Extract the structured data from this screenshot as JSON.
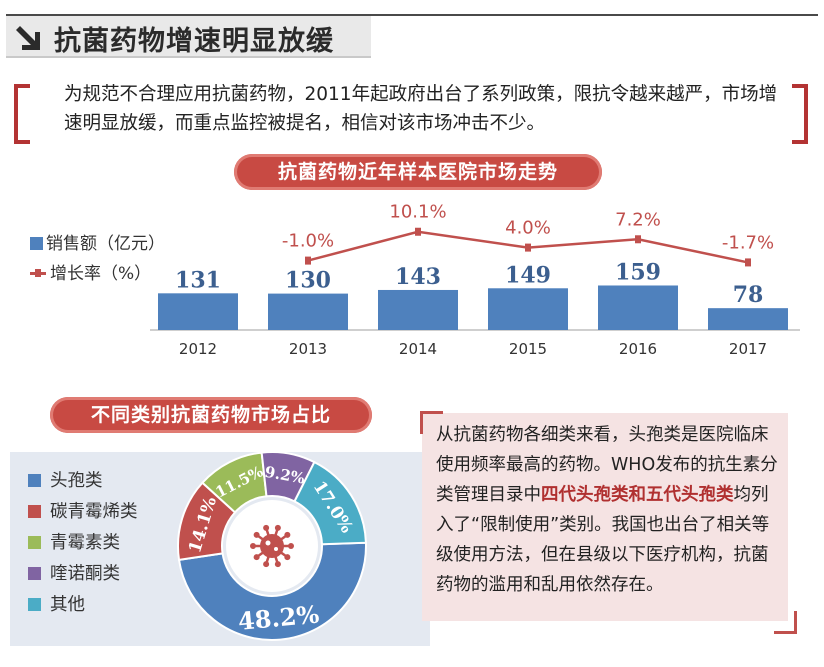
{
  "header": {
    "title": "抗菌药物增速明显放缓"
  },
  "intro": {
    "text": "为规范不合理应用抗菌药物，2011年起政府出台了系列政策，限抗令越来越严，市场增速明显放缓，而重点监控被提名，相信对该市场冲击不少。"
  },
  "chart1_title": "抗菌药物近年样本医院市场走势",
  "chart2_title": "不同类别抗菌药物市场占比",
  "colors": {
    "bar": "#4f81bd",
    "line": "#c0504d",
    "accent": "#c84a43",
    "pie_panel": "#e4e9f1",
    "info_bg": "#f5e3e3"
  },
  "chart_data": [
    {
      "type": "bar",
      "categories": [
        "2012",
        "2013",
        "2014",
        "2015",
        "2016",
        "2017"
      ],
      "series": [
        {
          "name": "销售额（亿元）",
          "type": "bar",
          "values": [
            131,
            130,
            143,
            149,
            159,
            78
          ],
          "labels": [
            "131",
            "130",
            "143",
            "149",
            "159",
            "78"
          ]
        },
        {
          "name": "增长率（%）",
          "type": "line",
          "values": [
            null,
            -1.0,
            10.1,
            4.0,
            7.2,
            -1.7
          ],
          "labels": [
            "",
            "-1.0%",
            "10.1%",
            "4.0%",
            "7.2%",
            "-1.7%"
          ]
        }
      ],
      "legend": [
        "销售额（亿元）",
        "增长率（%）"
      ],
      "legend_position": "left",
      "grid": false
    },
    {
      "type": "pie",
      "style": "donut",
      "categories": [
        "头孢类",
        "碳青霉烯类",
        "青霉素类",
        "喹诺酮类",
        "其他"
      ],
      "values": [
        48.2,
        14.1,
        11.5,
        9.2,
        17.0
      ],
      "labels": [
        "48.2%",
        "14.1%",
        "11.5%",
        "9.2%",
        "17.0%"
      ],
      "colors": [
        "#4f81bd",
        "#c0504d",
        "#9bbb59",
        "#8064a2",
        "#4bacc6"
      ],
      "legend_position": "left"
    }
  ],
  "info": {
    "part1": "从抗菌药物各细类来看，头孢类是医院临床使用频率最高的药物。WHO发布的抗生素分类管理目录中",
    "highlight": "四代头孢类和五代头孢类",
    "part2": "均列入了“限制使用”类别。我国也出台了相关等级使用方法，但在县级以下医疗机构，抗菌药物的滥用和乱用依然存在。"
  },
  "icons": {
    "header_arrow": "arrow-down-right-icon",
    "donut_center": "virus-icon"
  }
}
